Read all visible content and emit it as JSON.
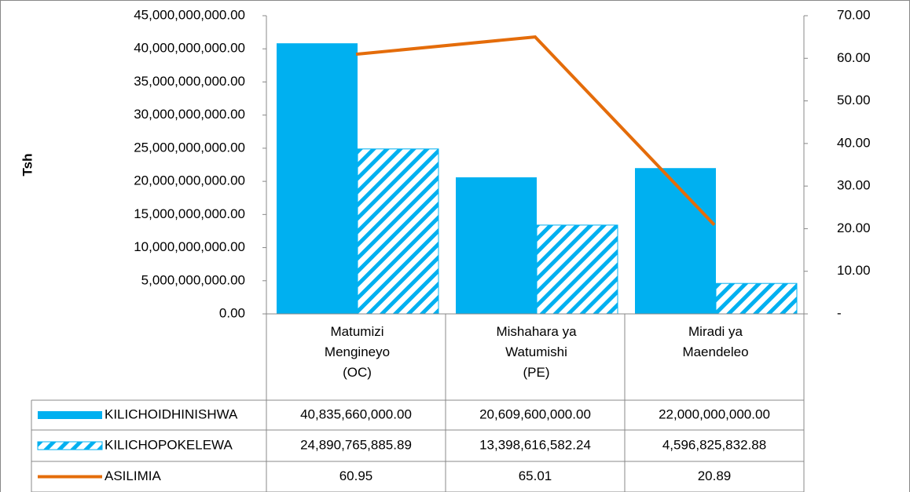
{
  "chart_data": {
    "type": "bar_line",
    "y_label": "Tsh",
    "categories": [
      "Matumizi\nMengineyo\n(OC)",
      "Mishahara ya\nWatumishi\n(PE)",
      "Miradi ya\nMaendeleo"
    ],
    "series": [
      {
        "name": "KILICHOIDHINISHWA",
        "type": "bar",
        "color": "#00b0f0",
        "pattern": "solid",
        "values": [
          40835660000.0,
          20609600000.0,
          22000000000.0
        ],
        "value_labels": [
          "40,835,660,000.00",
          "20,609,600,000.00",
          "22,000,000,000.00"
        ]
      },
      {
        "name": "KILICHOPOKELEWA",
        "type": "bar",
        "color": "#00b0f0",
        "pattern": "hatch",
        "values": [
          24890765885.89,
          13398616582.24,
          4596825832.88
        ],
        "value_labels": [
          "24,890,765,885.89",
          "13,398,616,582.24",
          "4,596,825,832.88"
        ]
      },
      {
        "name": "ASILIMIA",
        "type": "line",
        "axis": "y2",
        "color": "#e46c0a",
        "values": [
          60.95,
          65.01,
          20.89
        ]
      }
    ],
    "ylim": [
      0,
      45000000000
    ],
    "yticks": [
      {
        "value": 0,
        "label": "0.00"
      },
      {
        "value": 5000000000,
        "label": "5,000,000,000.00"
      },
      {
        "value": 10000000000,
        "label": "10,000,000,000.00"
      },
      {
        "value": 15000000000,
        "label": "15,000,000,000.00"
      },
      {
        "value": 20000000000,
        "label": "20,000,000,000.00"
      },
      {
        "value": 25000000000,
        "label": "25,000,000,000.00"
      },
      {
        "value": 30000000000,
        "label": "30,000,000,000.00"
      },
      {
        "value": 35000000000,
        "label": "35,000,000,000.00"
      },
      {
        "value": 40000000000,
        "label": "40,000,000,000.00"
      },
      {
        "value": 45000000000,
        "label": "45,000,000,000.00"
      }
    ],
    "y2lim": [
      0,
      70
    ],
    "y2ticks": [
      {
        "value": 0,
        "label": "-"
      },
      {
        "value": 10,
        "label": "10.00"
      },
      {
        "value": 20,
        "label": "20.00"
      },
      {
        "value": 30,
        "label": "30.00"
      },
      {
        "value": 40,
        "label": "40.00"
      },
      {
        "value": 50,
        "label": "50.00"
      },
      {
        "value": 60,
        "label": "60.00"
      },
      {
        "value": 70,
        "label": "70.00"
      }
    ],
    "data_table": true
  }
}
